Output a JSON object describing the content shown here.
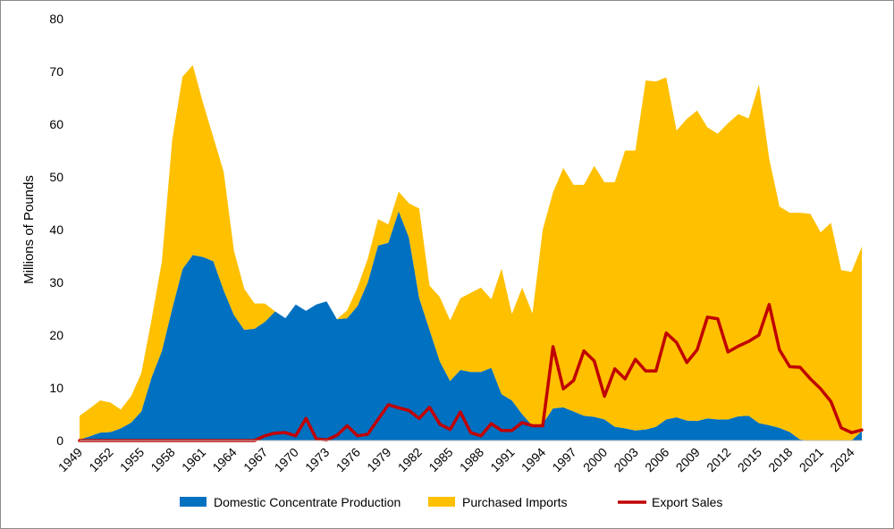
{
  "chart_data": {
    "type": "area",
    "xlabel": "",
    "ylabel": "Millions of Pounds",
    "ylim": [
      0,
      80
    ],
    "yticks": [
      0,
      10,
      20,
      30,
      40,
      50,
      60,
      70,
      80
    ],
    "xlim": [
      1949,
      2025
    ],
    "xticks": [
      1949,
      1952,
      1955,
      1958,
      1961,
      1964,
      1967,
      1970,
      1973,
      1976,
      1979,
      1982,
      1985,
      1988,
      1991,
      1994,
      1997,
      2000,
      2003,
      2006,
      2009,
      2012,
      2015,
      2018,
      2021,
      2024
    ],
    "grid": false,
    "legend_position": "bottom",
    "colors": {
      "domestic": "#0070C0",
      "imports": "#FFC000",
      "exports": "#C00000"
    },
    "stacked": true,
    "x": [
      1949,
      1950,
      1951,
      1952,
      1953,
      1954,
      1955,
      1956,
      1957,
      1958,
      1959,
      1960,
      1961,
      1962,
      1963,
      1964,
      1965,
      1966,
      1967,
      1968,
      1969,
      1970,
      1971,
      1972,
      1973,
      1974,
      1975,
      1976,
      1977,
      1978,
      1979,
      1980,
      1981,
      1982,
      1983,
      1984,
      1985,
      1986,
      1987,
      1988,
      1989,
      1990,
      1991,
      1992,
      1993,
      1994,
      1995,
      1996,
      1997,
      1998,
      1999,
      2000,
      2001,
      2002,
      2003,
      2004,
      2005,
      2006,
      2007,
      2008,
      2009,
      2010,
      2011,
      2012,
      2013,
      2014,
      2015,
      2016,
      2017,
      2018,
      2019,
      2020,
      2021,
      2022,
      2023,
      2024,
      2025
    ],
    "series": [
      {
        "name": "Domestic Concentrate Production",
        "kind": "area",
        "values": [
          0.2,
          0.8,
          1.5,
          1.6,
          2.3,
          3.4,
          5.5,
          12,
          17,
          25,
          32.5,
          35.2,
          34.8,
          34,
          28.5,
          23.8,
          21,
          21.2,
          22.5,
          24.5,
          23.2,
          25.8,
          24.6,
          25.8,
          26.4,
          23,
          23.2,
          25.5,
          30,
          37,
          37.5,
          43.5,
          38.5,
          27,
          21,
          15,
          11.3,
          13.4,
          13,
          13,
          13.8,
          8.8,
          7.6,
          5,
          2.8,
          3.2,
          6.1,
          6.3,
          5.5,
          4.7,
          4.5,
          4,
          2.6,
          2.3,
          1.9,
          2.1,
          2.6,
          4,
          4.4,
          3.8,
          3.7,
          4.2,
          4,
          4,
          4.6,
          4.7,
          3.3,
          2.9,
          2.4,
          1.6,
          0.2,
          0,
          0,
          0,
          0,
          0,
          1.8
        ]
      },
      {
        "name": "Purchased Imports",
        "kind": "area",
        "values": [
          4.5,
          5.3,
          6.1,
          5.6,
          3.6,
          5,
          7.3,
          11,
          17,
          32,
          36.5,
          36,
          29.2,
          23.5,
          22.5,
          12.2,
          7.8,
          4.8,
          3.5,
          0,
          0,
          0,
          0,
          0,
          0,
          0,
          1.5,
          3.5,
          4.5,
          5,
          3.5,
          3.7,
          6.5,
          17,
          8.4,
          12.2,
          11.5,
          13.6,
          15,
          16,
          13,
          23.8,
          16.4,
          24,
          21.3,
          36.8,
          41,
          45.4,
          43,
          43.8,
          47.6,
          45,
          46.4,
          52.7,
          53.1,
          66.2,
          65.5,
          64.9,
          54.4,
          57.2,
          58.9,
          55.2,
          54.2,
          56.2,
          57.3,
          56.4,
          64.2,
          50.6,
          42,
          41.6,
          43,
          43,
          39.5,
          41.3,
          32.3,
          32,
          35
        ]
      },
      {
        "name": "Export Sales",
        "kind": "line",
        "values": [
          0,
          0,
          0,
          0,
          0,
          0,
          0,
          0,
          0,
          0,
          0,
          0,
          0,
          0,
          0,
          0,
          0,
          0,
          0.9,
          1.4,
          1.5,
          0.9,
          4.2,
          0.3,
          0.1,
          1,
          2.8,
          0.9,
          1.2,
          4,
          6.8,
          6.2,
          5.7,
          4.2,
          6.3,
          3.1,
          2.1,
          5.4,
          1.5,
          0.9,
          3.2,
          1.9,
          1.9,
          3.4,
          2.8,
          2.8,
          17.8,
          9.8,
          11.4,
          17,
          15.1,
          8.4,
          13.6,
          11.7,
          15.4,
          13.2,
          13.2,
          20.4,
          18.6,
          14.8,
          17.2,
          23.4,
          23.1,
          16.8,
          17.9,
          18.8,
          20,
          25.8,
          17.2,
          14,
          13.9,
          11.7,
          9.8,
          7.4,
          2.4,
          1.5,
          2
        ]
      }
    ]
  }
}
